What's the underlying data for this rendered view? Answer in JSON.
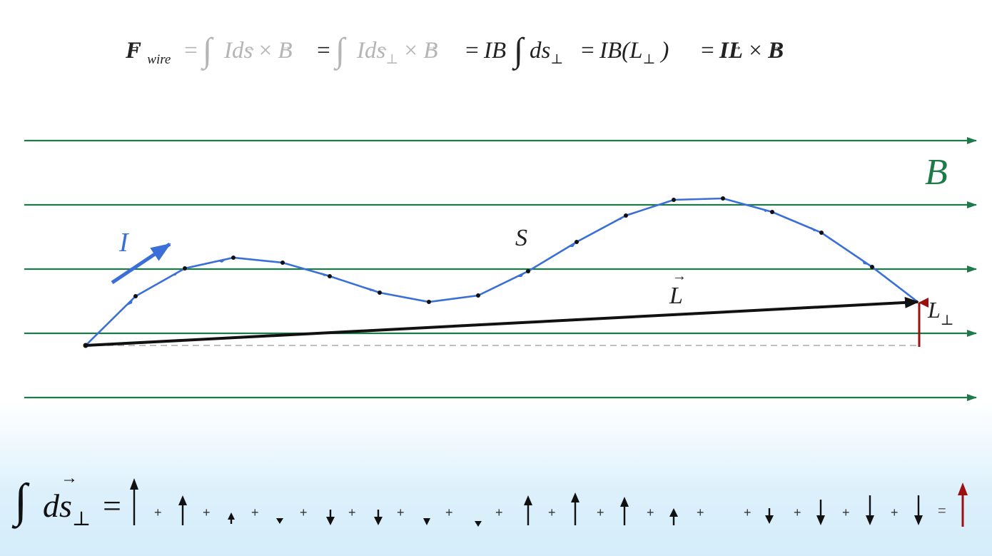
{
  "formula": {
    "F": "F",
    "F_sub": "wire",
    "eq": "=",
    "int": "∫",
    "Ids": "Id",
    "s": "s",
    "perp": "⊥",
    "times": "×",
    "B": "B",
    "IB": "IB",
    "ds": "ds",
    "IB_open": "IB(",
    "L": "L",
    "close": ")",
    "I": "I"
  },
  "labels": {
    "B_field": "B",
    "current": "I",
    "S": "S",
    "L_vec": "L",
    "L_perp": "L",
    "perp": "⊥"
  },
  "sum": {
    "int": "∫",
    "ds": "d",
    "s": "s",
    "perp": "⊥",
    "eq": "=",
    "plus": "+",
    "result_eq": "="
  },
  "colors": {
    "field": "#1f7a4a",
    "wire": "#3a6fd8",
    "displacement": "#111111",
    "perp_component": "#9b1010",
    "dim_text": "#b5b5b5"
  }
}
